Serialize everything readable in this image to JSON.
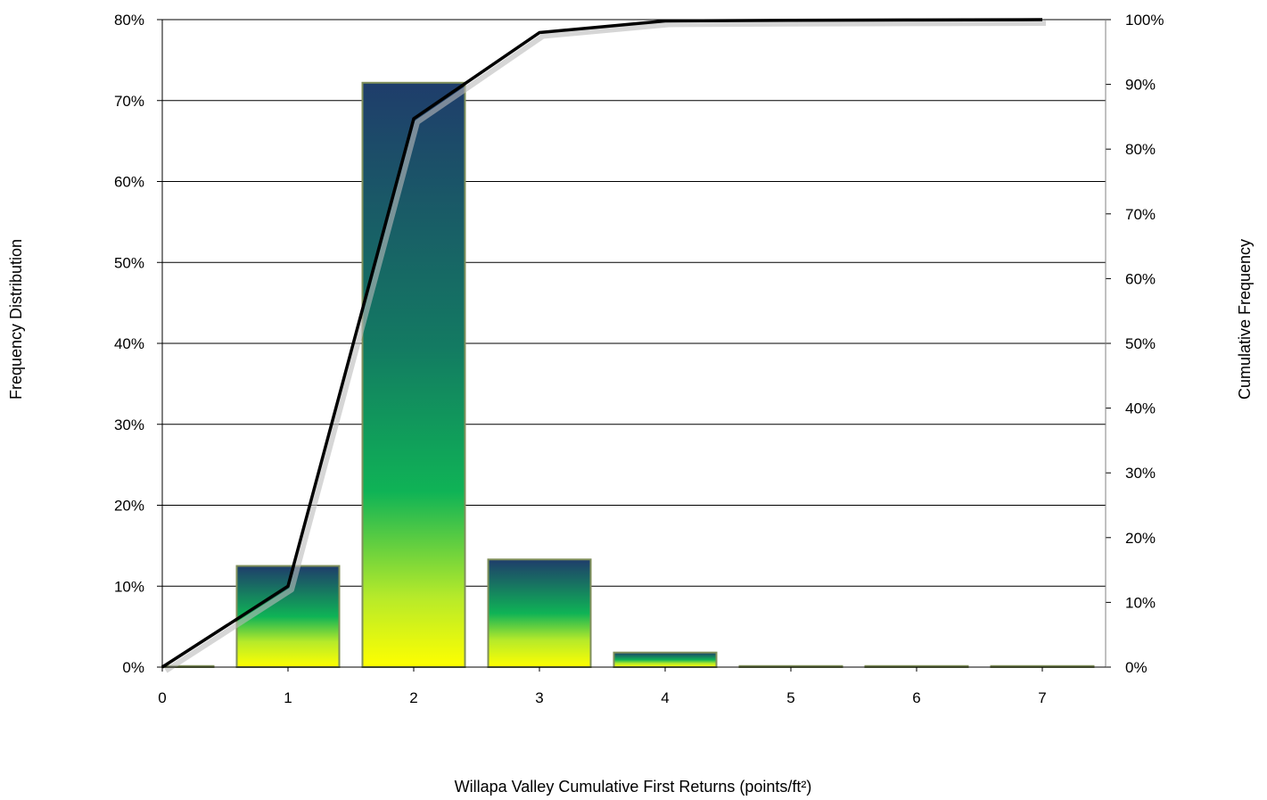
{
  "chart_data": {
    "type": "bar",
    "title": "",
    "xlabel": "Willapa Valley Cumulative First Returns (points/ft²)",
    "ylabel": "Frequency Distribution",
    "y2label": "Cumulative Frequency",
    "categories": [
      "0",
      "1",
      "2",
      "3",
      "4",
      "5",
      "6",
      "7"
    ],
    "ylim": [
      0,
      80
    ],
    "y2lim": [
      0,
      100
    ],
    "yticks": [
      "0%",
      "10%",
      "20%",
      "30%",
      "40%",
      "50%",
      "60%",
      "70%",
      "80%"
    ],
    "y2ticks": [
      "0%",
      "10%",
      "20%",
      "30%",
      "40%",
      "50%",
      "60%",
      "70%",
      "80%",
      "90%",
      "100%"
    ],
    "grid": true,
    "series": [
      {
        "type": "bar",
        "axis": "left",
        "values": [
          0.0,
          12.5,
          72.2,
          13.3,
          1.8,
          0.1,
          0.05,
          0.05
        ]
      },
      {
        "type": "line",
        "axis": "right",
        "values": [
          0.0,
          12.5,
          84.7,
          98.0,
          99.8,
          99.9,
          99.95,
          100.0
        ]
      }
    ],
    "colors": {
      "bar_top": "#1f3d6b",
      "bar_mid": "#0fb356",
      "bar_bottom": "#ffff00",
      "line": "#000000",
      "bar_border": "#7f8f5a"
    }
  }
}
